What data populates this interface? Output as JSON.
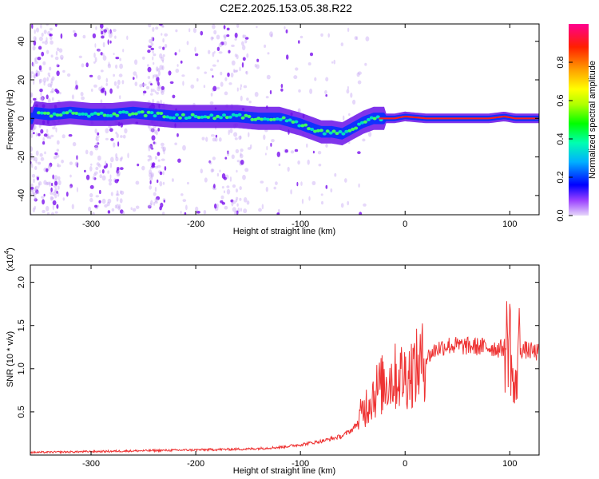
{
  "title": "C2E2.2025.153.05.38.R22",
  "chart_data": [
    {
      "type": "heatmap",
      "xlabel": "Height of straight line (km)",
      "ylabel": "Frequency (Hz)",
      "xlim": [
        -358,
        128
      ],
      "ylim": [
        -50,
        49
      ],
      "x_ticks": [
        -300,
        -200,
        -100,
        0,
        100
      ],
      "y_ticks": [
        -40,
        -20,
        0,
        20,
        40
      ],
      "colorbar": {
        "label": "Normalized spectral amplitude",
        "range": [
          0,
          1
        ],
        "ticks": [
          0.0,
          0.2,
          0.4,
          0.6,
          0.8
        ],
        "colors": [
          "#e6d7fa",
          "#7a00ff",
          "#0000ff",
          "#00b0ff",
          "#00ffb0",
          "#00ff00",
          "#b0ff00",
          "#ffff00",
          "#ffa000",
          "#ff2000",
          "#ff0090"
        ]
      },
      "ridge": [
        {
          "x": -355,
          "y": 3
        },
        {
          "x": -340,
          "y": 2
        },
        {
          "x": -320,
          "y": 3
        },
        {
          "x": -300,
          "y": 2
        },
        {
          "x": -280,
          "y": 2
        },
        {
          "x": -260,
          "y": 3
        },
        {
          "x": -240,
          "y": 2
        },
        {
          "x": -220,
          "y": 1
        },
        {
          "x": -200,
          "y": 1
        },
        {
          "x": -180,
          "y": 1
        },
        {
          "x": -160,
          "y": 1
        },
        {
          "x": -140,
          "y": 0
        },
        {
          "x": -120,
          "y": 0
        },
        {
          "x": -100,
          "y": -3
        },
        {
          "x": -90,
          "y": -5
        },
        {
          "x": -80,
          "y": -7
        },
        {
          "x": -70,
          "y": -7
        },
        {
          "x": -60,
          "y": -8
        },
        {
          "x": -50,
          "y": -5
        },
        {
          "x": -40,
          "y": -2
        },
        {
          "x": -30,
          "y": 0
        },
        {
          "x": -20,
          "y": 0
        },
        {
          "x": -10,
          "y": 0
        },
        {
          "x": 0,
          "y": 1
        },
        {
          "x": 20,
          "y": 0
        },
        {
          "x": 50,
          "y": 0
        },
        {
          "x": 80,
          "y": 0
        },
        {
          "x": 95,
          "y": 1
        },
        {
          "x": 105,
          "y": 0
        },
        {
          "x": 128,
          "y": 0
        }
      ]
    },
    {
      "type": "line",
      "xlabel": "Height of straight line (km)",
      "ylabel": "SNR (10 * v/v)",
      "scale_note": "(x10",
      "scale_exponent": "4",
      "xlim": [
        -358,
        128
      ],
      "ylim": [
        0,
        22000
      ],
      "x_ticks": [
        -300,
        -200,
        -100,
        0,
        100
      ],
      "y_ticks": [
        5000,
        10000,
        15000,
        20000
      ],
      "y_tick_labels": [
        "0.5",
        "1.0",
        "1.5",
        "2.0"
      ],
      "line_color": "#ee3333",
      "series": [
        {
          "x": [
            -358,
            -300,
            -200,
            -150,
            -120,
            -100,
            -80,
            -60,
            -50,
            -45,
            -40,
            -35,
            -30,
            -25,
            -20,
            -15,
            -10,
            -5,
            0,
            10,
            20,
            30,
            40,
            60,
            80,
            90,
            95,
            100,
            103,
            105,
            108,
            112,
            118,
            128
          ],
          "y": [
            300,
            400,
            600,
            700,
            900,
            1200,
            1600,
            2200,
            3000,
            3800,
            5200,
            6200,
            7200,
            7800,
            8300,
            8800,
            9000,
            9200,
            9200,
            10000,
            11200,
            12300,
            12700,
            12600,
            12500,
            12300,
            12500,
            14000,
            8000,
            6500,
            12500,
            12200,
            12100,
            11800
          ]
        }
      ]
    }
  ]
}
